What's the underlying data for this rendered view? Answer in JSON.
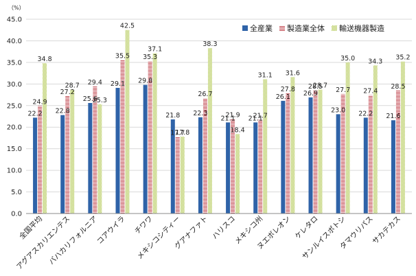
{
  "chart_data": {
    "type": "bar",
    "unit_label": "（%）",
    "categories": [
      "全国平均",
      "アグアスカリエンテス",
      "バハカリフォルニア",
      "コアウイラ",
      "チワワ",
      "メキシコシティー",
      "グアナファト",
      "ハリスコ",
      "メキシコ州",
      "ヌエボレオン",
      "ケレタロ",
      "サンルイスポトシ",
      "タマウリパス",
      "サカテカス"
    ],
    "series": [
      {
        "name": "全産業",
        "color": "#2f63a8",
        "pattern": "solid",
        "values": [
          22.2,
          22.8,
          25.6,
          29.1,
          29.8,
          21.8,
          22.3,
          21.1,
          21.1,
          26.1,
          26.9,
          23.0,
          22.2,
          21.6
        ]
      },
      {
        "name": "製造業全体",
        "color": "#c0444d",
        "pattern": "hstripe",
        "values": [
          24.9,
          27.2,
          29.4,
          35.5,
          35.3,
          17.7,
          26.7,
          21.9,
          21.7,
          27.8,
          28.5,
          27.7,
          27.4,
          28.5
        ]
      },
      {
        "name": "輸送機器製造",
        "color": "#a9c23f",
        "pattern": "checker",
        "values": [
          34.8,
          28.7,
          25.3,
          42.5,
          37.1,
          17.8,
          38.3,
          18.4,
          31.1,
          31.6,
          28.7,
          35.0,
          34.3,
          35.2
        ]
      }
    ],
    "y_ticks": [
      "0.0",
      "5.0",
      "10.0",
      "15.0",
      "20.0",
      "25.0",
      "30.0",
      "35.0",
      "40.0",
      "45.0"
    ],
    "ylim": [
      0,
      45
    ],
    "grid": true,
    "legend": "top-right"
  }
}
